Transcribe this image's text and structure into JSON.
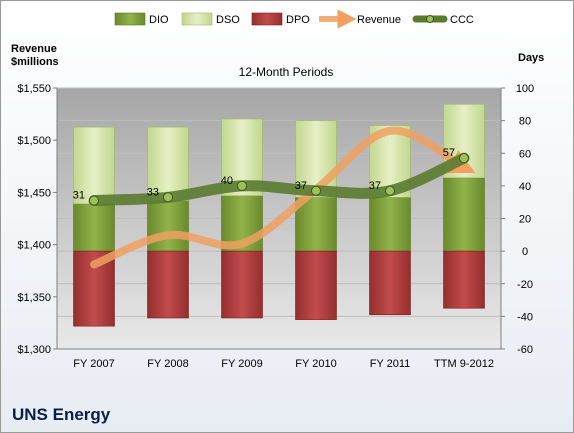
{
  "chart_data": {
    "type": "bar-line-combo",
    "title": "12-Month Periods",
    "company": "UNS Energy",
    "left_axis": {
      "label_lines": [
        "Revenue",
        "$millions"
      ],
      "min": 1300,
      "max": 1550,
      "ticks": [
        "$1,300",
        "$1,350",
        "$1,400",
        "$1,450",
        "$1,500",
        "$1,550"
      ],
      "tick_values": [
        1300,
        1350,
        1400,
        1450,
        1500,
        1550
      ]
    },
    "right_axis": {
      "label": "Days",
      "min": -60,
      "max": 100,
      "ticks": [
        "-60",
        "-40",
        "-20",
        "0",
        "20",
        "40",
        "60",
        "80",
        "100"
      ],
      "tick_values": [
        -60,
        -40,
        -20,
        0,
        20,
        40,
        60,
        80,
        100
      ]
    },
    "categories": [
      "FY 2007",
      "FY 2008",
      "FY 2009",
      "FY 2010",
      "FY 2011",
      "TTM 9-2012"
    ],
    "legend": [
      "DIO",
      "DSO",
      "DPO",
      "Revenue",
      "CCC"
    ],
    "series": [
      {
        "name": "DIO",
        "axis": "right",
        "values": [
          29,
          31,
          34,
          33,
          33,
          45
        ]
      },
      {
        "name": "DSO",
        "axis": "right",
        "values": [
          47,
          45,
          47,
          47,
          44,
          45
        ]
      },
      {
        "name": "DPO",
        "axis": "right",
        "values": [
          -46,
          -41,
          -41,
          -42,
          -39,
          -35
        ]
      },
      {
        "name": "Revenue",
        "axis": "left",
        "values": [
          1381,
          1409,
          1401,
          1453,
          1509,
          1474
        ]
      },
      {
        "name": "CCC",
        "axis": "right",
        "values": [
          31,
          33,
          40,
          37,
          37,
          57
        ],
        "labels": [
          "31",
          "33",
          "40",
          "37",
          "37",
          "57"
        ]
      }
    ],
    "colors": {
      "DIO": "#7a9b3a",
      "DSO": "#cfe0a0",
      "DPO": "#b03c3c",
      "Revenue": "#f0a060",
      "CCC": "#5a7a30"
    }
  }
}
